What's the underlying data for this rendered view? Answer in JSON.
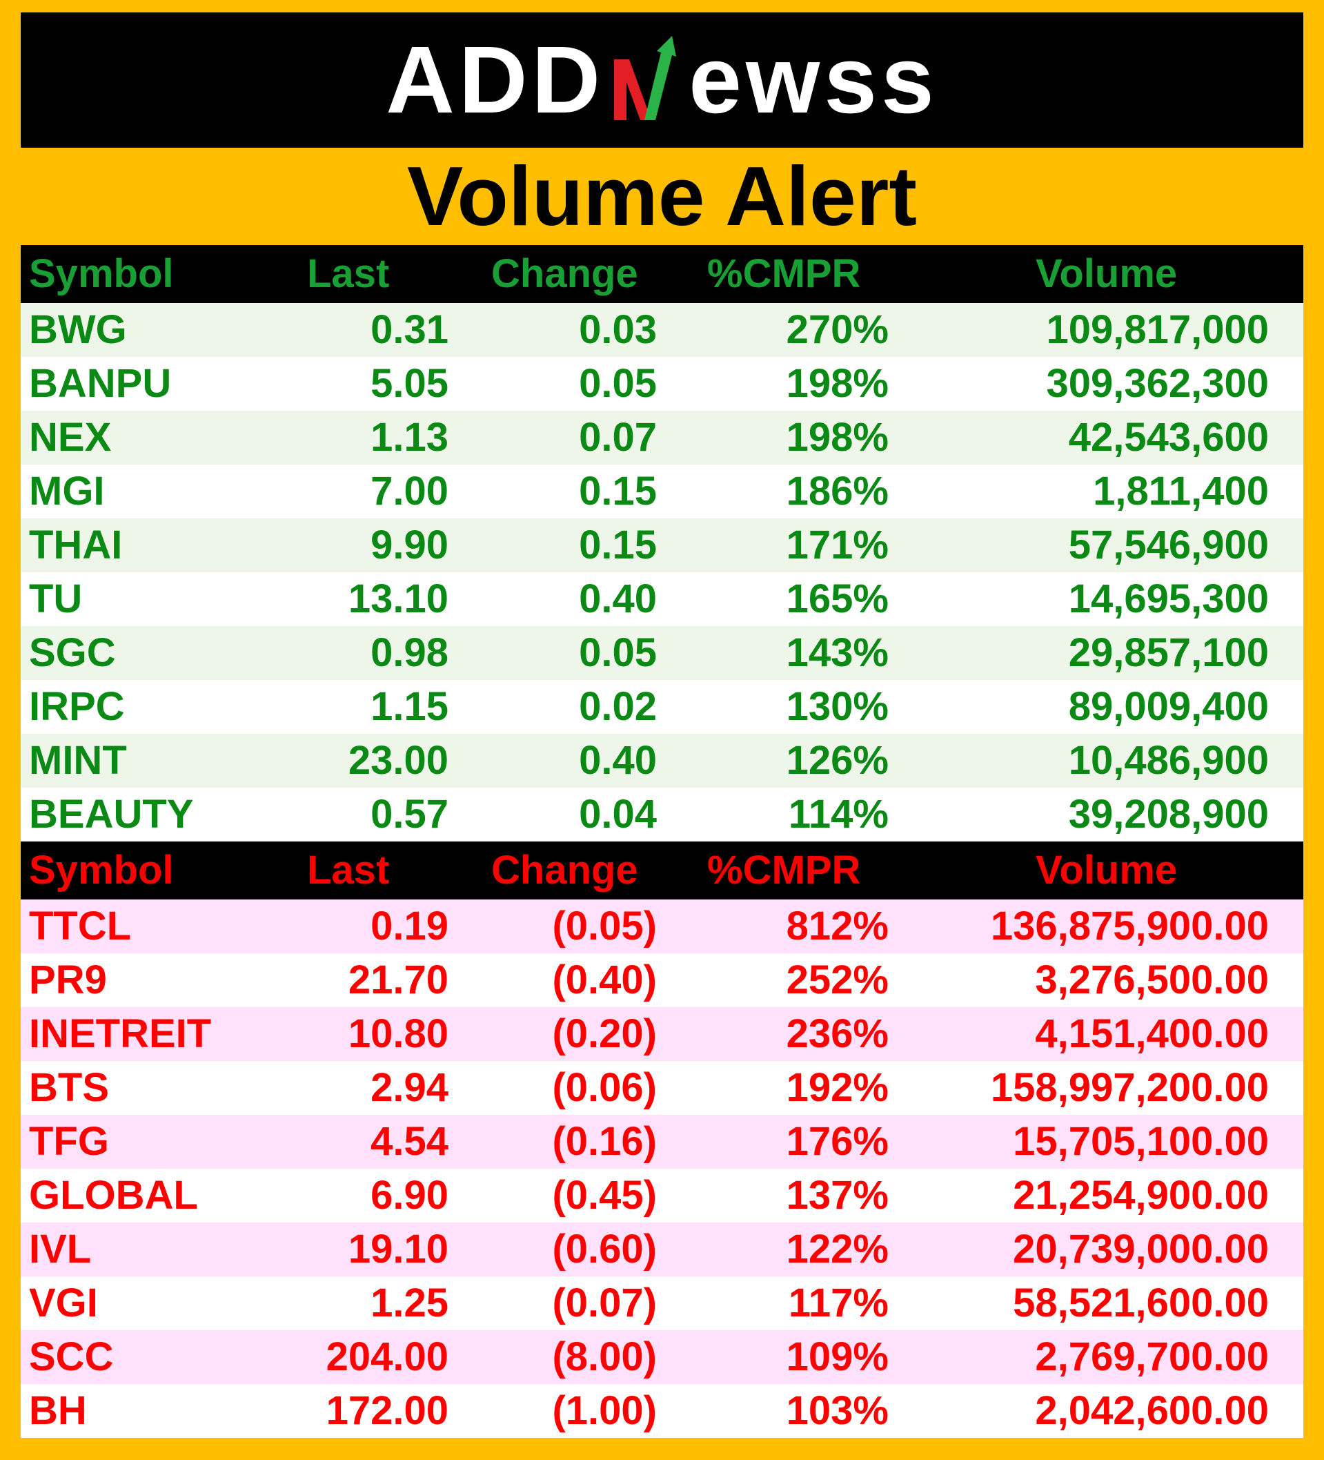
{
  "brand": {
    "prefix": "ADD",
    "suffix": "ewss"
  },
  "title": "Volume Alert",
  "colors": {
    "background": "#ffbf00",
    "gainers_text": "#0a8a14",
    "losers_text": "#ff0000",
    "logo_slash_green": "#2bb34a",
    "logo_slash_red": "#e31e24"
  },
  "gainers": {
    "headers": {
      "symbol": "Symbol",
      "last": "Last",
      "change": "Change",
      "cmpr": "%CMPR",
      "volume": "Volume"
    },
    "rows": [
      {
        "symbol": "BWG",
        "last": "0.31",
        "change": "0.03",
        "cmpr": "270%",
        "volume": "109,817,000"
      },
      {
        "symbol": "BANPU",
        "last": "5.05",
        "change": "0.05",
        "cmpr": "198%",
        "volume": "309,362,300"
      },
      {
        "symbol": "NEX",
        "last": "1.13",
        "change": "0.07",
        "cmpr": "198%",
        "volume": "42,543,600"
      },
      {
        "symbol": "MGI",
        "last": "7.00",
        "change": "0.15",
        "cmpr": "186%",
        "volume": "1,811,400"
      },
      {
        "symbol": "THAI",
        "last": "9.90",
        "change": "0.15",
        "cmpr": "171%",
        "volume": "57,546,900"
      },
      {
        "symbol": "TU",
        "last": "13.10",
        "change": "0.40",
        "cmpr": "165%",
        "volume": "14,695,300"
      },
      {
        "symbol": "SGC",
        "last": "0.98",
        "change": "0.05",
        "cmpr": "143%",
        "volume": "29,857,100"
      },
      {
        "symbol": "IRPC",
        "last": "1.15",
        "change": "0.02",
        "cmpr": "130%",
        "volume": "89,009,400"
      },
      {
        "symbol": "MINT",
        "last": "23.00",
        "change": "0.40",
        "cmpr": "126%",
        "volume": "10,486,900"
      },
      {
        "symbol": "BEAUTY",
        "last": "0.57",
        "change": "0.04",
        "cmpr": "114%",
        "volume": "39,208,900"
      }
    ]
  },
  "losers": {
    "headers": {
      "symbol": "Symbol",
      "last": "Last",
      "change": "Change",
      "cmpr": "%CMPR",
      "volume": "Volume"
    },
    "rows": [
      {
        "symbol": "TTCL",
        "last": "0.19",
        "change": "(0.05)",
        "cmpr": "812%",
        "volume": "136,875,900.00"
      },
      {
        "symbol": "PR9",
        "last": "21.70",
        "change": "(0.40)",
        "cmpr": "252%",
        "volume": "3,276,500.00"
      },
      {
        "symbol": "INETREIT",
        "last": "10.80",
        "change": "(0.20)",
        "cmpr": "236%",
        "volume": "4,151,400.00"
      },
      {
        "symbol": "BTS",
        "last": "2.94",
        "change": "(0.06)",
        "cmpr": "192%",
        "volume": "158,997,200.00"
      },
      {
        "symbol": "TFG",
        "last": "4.54",
        "change": "(0.16)",
        "cmpr": "176%",
        "volume": "15,705,100.00"
      },
      {
        "symbol": "GLOBAL",
        "last": "6.90",
        "change": "(0.45)",
        "cmpr": "137%",
        "volume": "21,254,900.00"
      },
      {
        "symbol": "IVL",
        "last": "19.10",
        "change": "(0.60)",
        "cmpr": "122%",
        "volume": "20,739,000.00"
      },
      {
        "symbol": "VGI",
        "last": "1.25",
        "change": "(0.07)",
        "cmpr": "117%",
        "volume": "58,521,600.00"
      },
      {
        "symbol": "SCC",
        "last": "204.00",
        "change": "(8.00)",
        "cmpr": "109%",
        "volume": "2,769,700.00"
      },
      {
        "symbol": "BH",
        "last": "172.00",
        "change": "(1.00)",
        "cmpr": "103%",
        "volume": "2,042,600.00"
      }
    ]
  }
}
